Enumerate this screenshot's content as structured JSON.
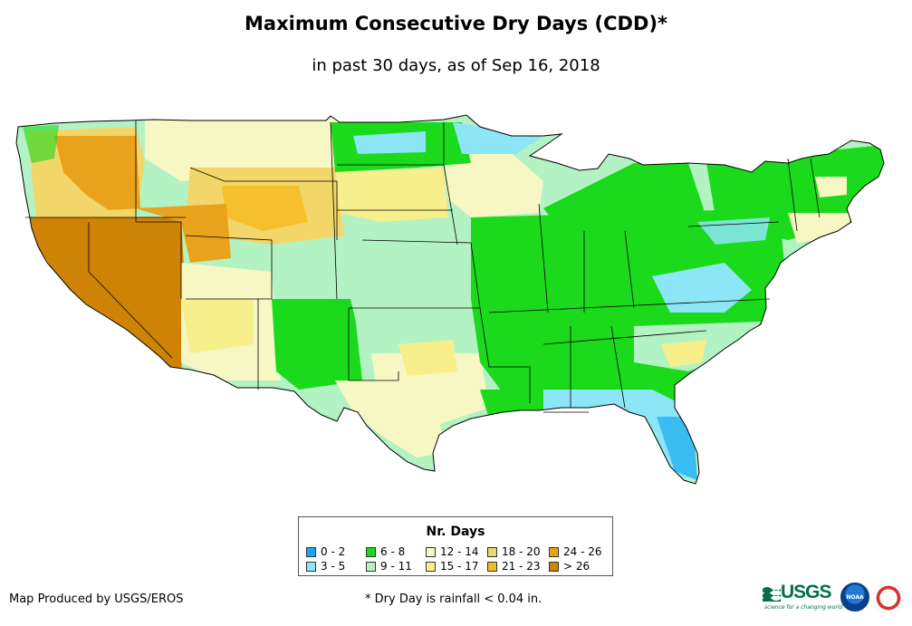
{
  "title": "Maximum Consecutive Dry Days (CDD)*",
  "subtitle": "in past 30 days, as of Sep 16, 2018",
  "legend": {
    "title": "Nr. Days",
    "items": [
      {
        "label": "0 - 2",
        "color": "#16a9ef"
      },
      {
        "label": "3 - 5",
        "color": "#8ce6f5"
      },
      {
        "label": "6 - 8",
        "color": "#1bd91b"
      },
      {
        "label": "9 - 11",
        "color": "#b3f2c2"
      },
      {
        "label": "12 - 14",
        "color": "#f7f7c4"
      },
      {
        "label": "15 - 17",
        "color": "#f7ef8c"
      },
      {
        "label": "18 - 20",
        "color": "#f3d669"
      },
      {
        "label": "21 - 23",
        "color": "#f4bc22"
      },
      {
        "label": "24 - 26",
        "color": "#e9a21c"
      },
      {
        "label": "> 26",
        "color": "#cf8305"
      }
    ]
  },
  "footer": {
    "credit": "Map Produced by USGS/EROS",
    "note": "* Dry Day is rainfall < 0.04 in."
  },
  "logos": {
    "usgs_text": "USGS",
    "usgs_tagline": "science for a changing world",
    "noaa_text": "NOAA"
  }
}
